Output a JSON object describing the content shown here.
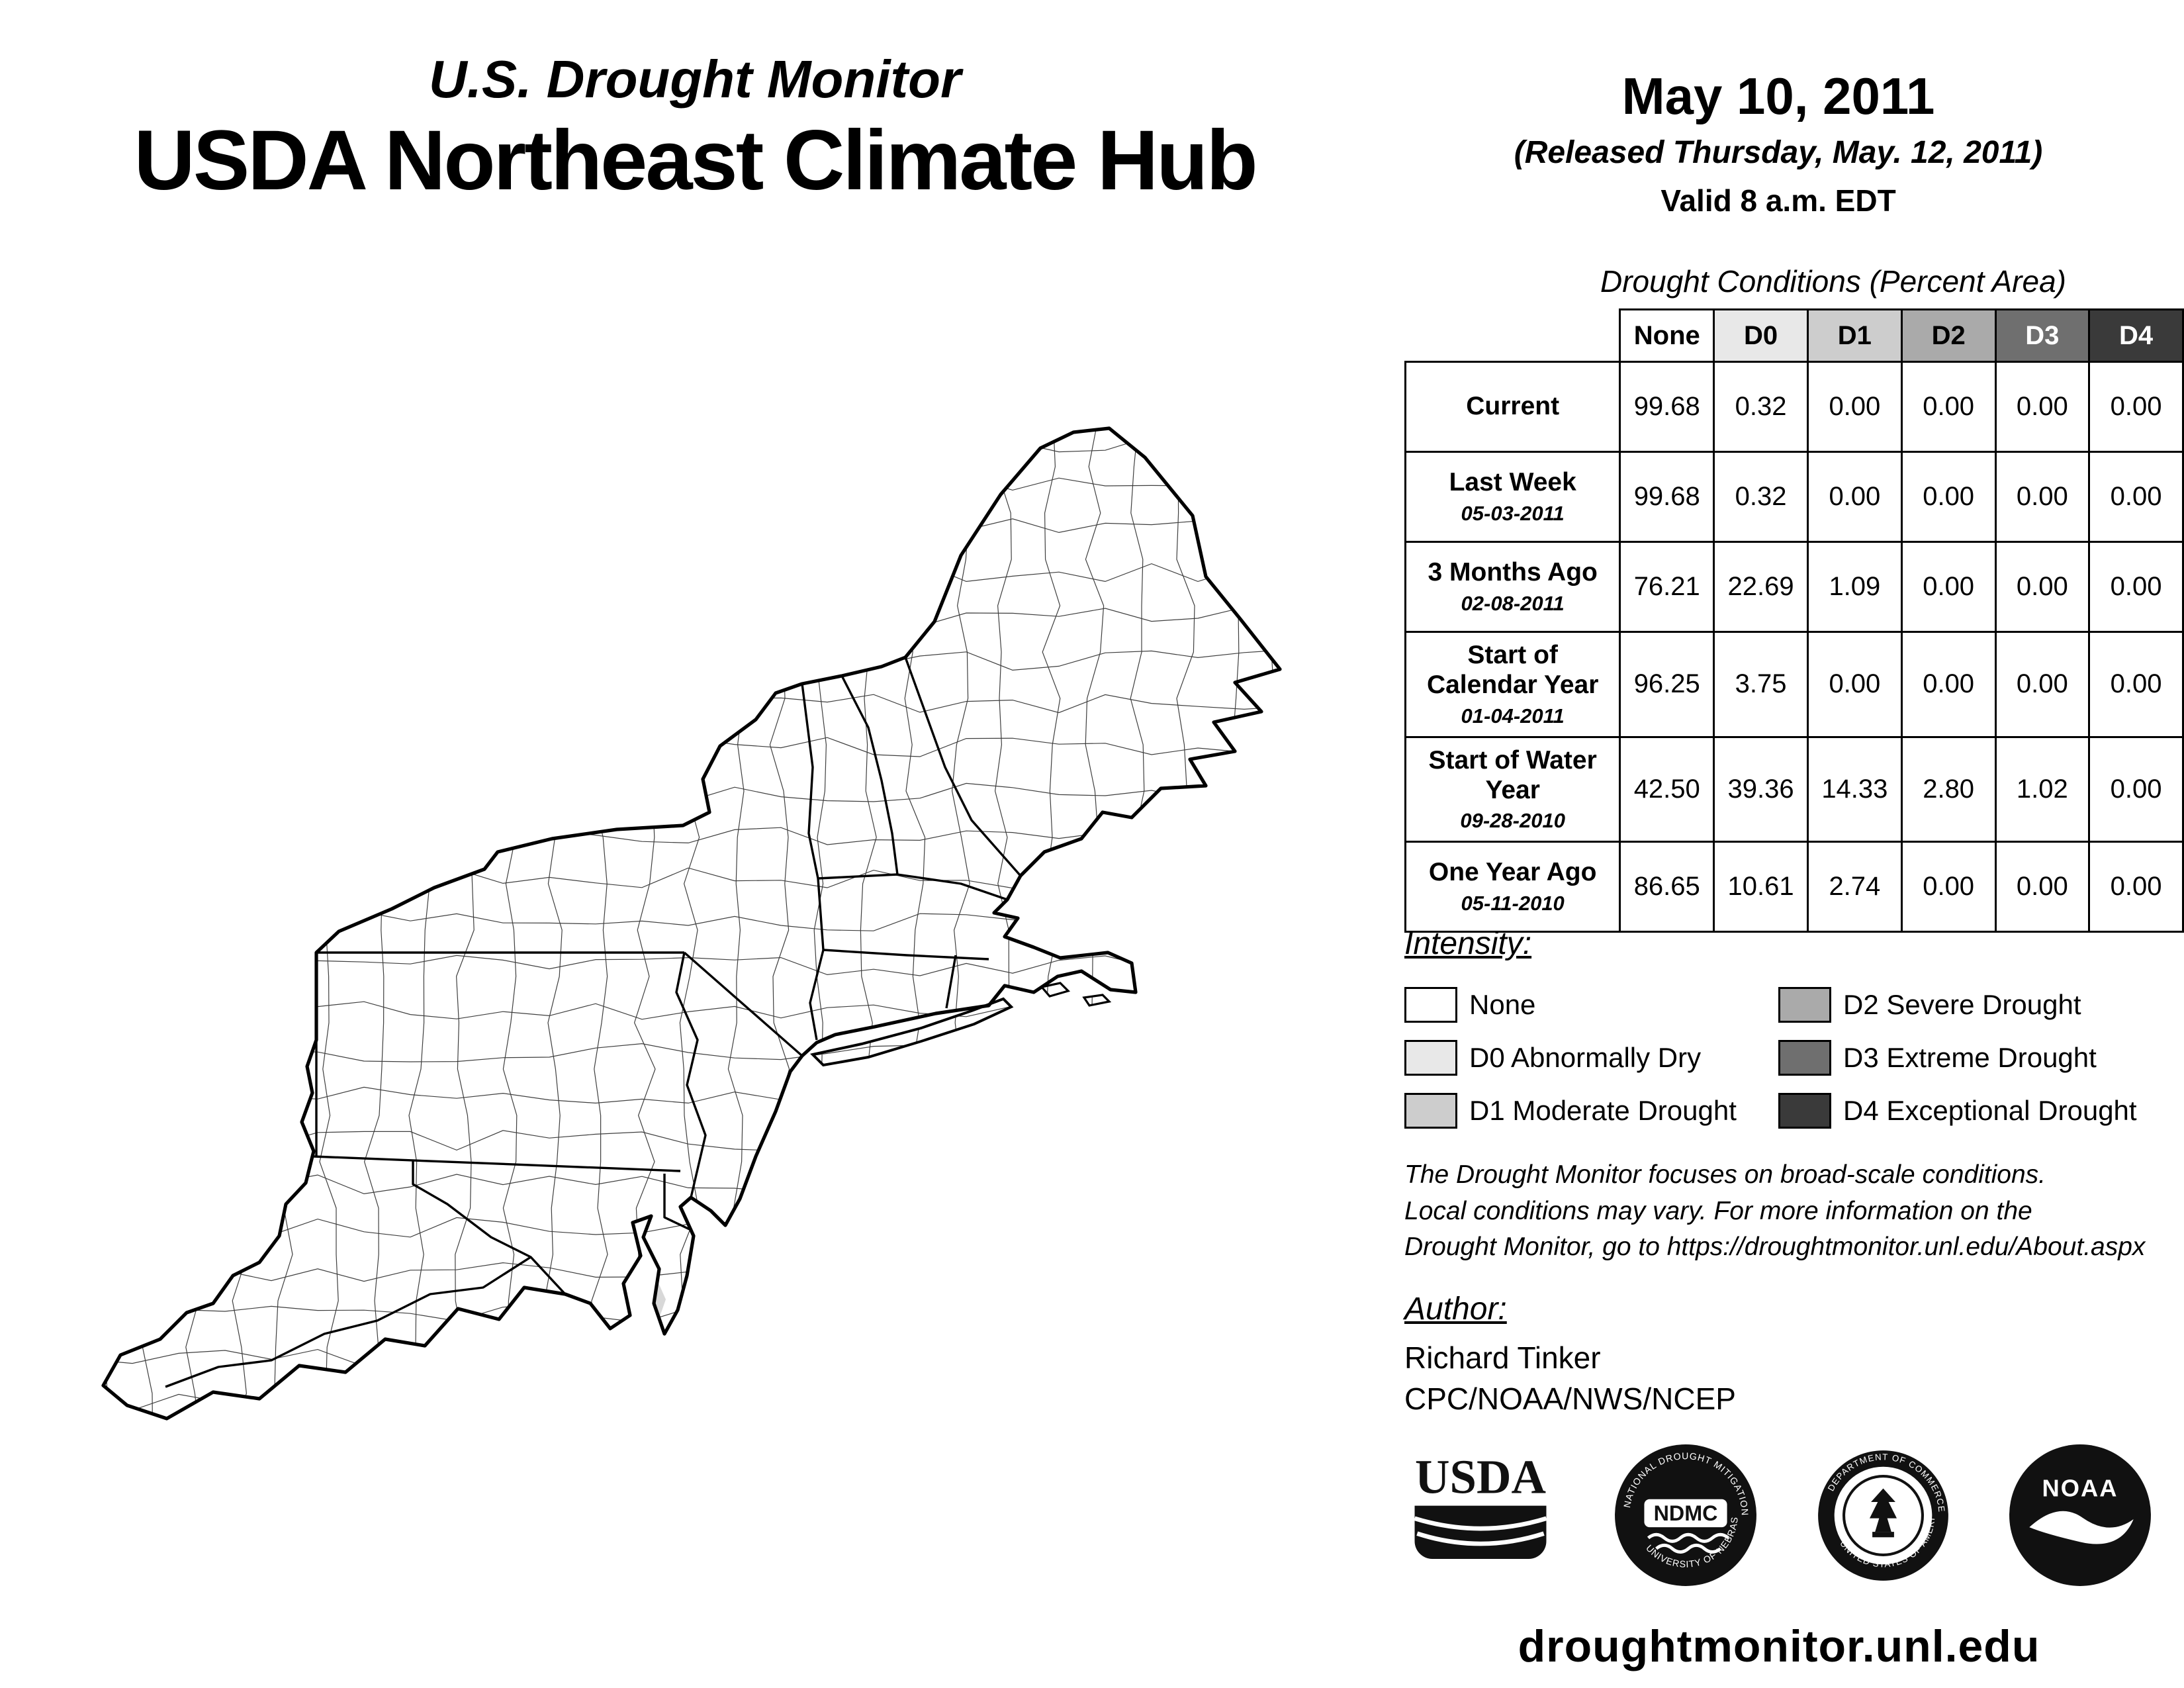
{
  "header": {
    "title_line1": "U.S. Drought Monitor",
    "title_line2": "USDA Northeast Climate Hub"
  },
  "report": {
    "date": "May 10, 2011",
    "released": "(Released Thursday, May. 12, 2011)",
    "valid": "Valid 8 a.m. EDT"
  },
  "table": {
    "title": "Drought Conditions (Percent Area)",
    "columns": [
      {
        "label": "None",
        "bg": "#ffffff",
        "fg": "#000000"
      },
      {
        "label": "D0",
        "bg": "#e8e8e8",
        "fg": "#000000"
      },
      {
        "label": "D1",
        "bg": "#cdcdcd",
        "fg": "#000000"
      },
      {
        "label": "D2",
        "bg": "#aaaaaa",
        "fg": "#000000"
      },
      {
        "label": "D3",
        "bg": "#6f6f6f",
        "fg": "#ffffff"
      },
      {
        "label": "D4",
        "bg": "#3a3a3a",
        "fg": "#ffffff"
      }
    ],
    "rows": [
      {
        "label": "Current",
        "date": "",
        "values": [
          "99.68",
          "0.32",
          "0.00",
          "0.00",
          "0.00",
          "0.00"
        ]
      },
      {
        "label": "Last Week",
        "date": "05-03-2011",
        "values": [
          "99.68",
          "0.32",
          "0.00",
          "0.00",
          "0.00",
          "0.00"
        ]
      },
      {
        "label": "3 Months Ago",
        "date": "02-08-2011",
        "values": [
          "76.21",
          "22.69",
          "1.09",
          "0.00",
          "0.00",
          "0.00"
        ]
      },
      {
        "label": "Start of Calendar Year",
        "date": "01-04-2011",
        "values": [
          "96.25",
          "3.75",
          "0.00",
          "0.00",
          "0.00",
          "0.00"
        ]
      },
      {
        "label": "Start of Water Year",
        "date": "09-28-2010",
        "values": [
          "42.50",
          "39.36",
          "14.33",
          "2.80",
          "1.02",
          "0.00"
        ]
      },
      {
        "label": "One Year Ago",
        "date": "05-11-2010",
        "values": [
          "86.65",
          "10.61",
          "2.74",
          "0.00",
          "0.00",
          "0.00"
        ]
      }
    ]
  },
  "legend": {
    "title": "Intensity:",
    "items": [
      {
        "label": "None",
        "color": "#ffffff"
      },
      {
        "label": "D0 Abnormally Dry",
        "color": "#e8e8e8"
      },
      {
        "label": "D1 Moderate Drought",
        "color": "#cdcdcd"
      },
      {
        "label": "D2 Severe Drought",
        "color": "#aaaaaa"
      },
      {
        "label": "D3 Extreme Drought",
        "color": "#6f6f6f"
      },
      {
        "label": "D4 Exceptional Drought",
        "color": "#3a3a3a"
      }
    ]
  },
  "notes": {
    "lines": [
      "The Drought Monitor focuses on broad-scale conditions.",
      "Local conditions may vary. For more information on the",
      "Drought Monitor, go to https://droughtmonitor.unl.edu/About.aspx"
    ]
  },
  "author": {
    "heading": "Author:",
    "name": "Richard Tinker",
    "org": "CPC/NOAA/NWS/NCEP"
  },
  "logos": {
    "usda": {
      "text": "USDA"
    },
    "ndmc": {
      "text": "NDMC",
      "ring_top": "NATIONAL DROUGHT MITIGATION CENTER",
      "ring_bottom": "UNIVERSITY OF NEBRASKA"
    },
    "commerce": {
      "ring_top": "DEPARTMENT OF COMMERCE",
      "ring_bottom": "UNITED STATES OF AMERICA"
    },
    "noaa": {
      "text": "NOAA"
    }
  },
  "footer": {
    "url": "droughtmonitor.unl.edu"
  }
}
